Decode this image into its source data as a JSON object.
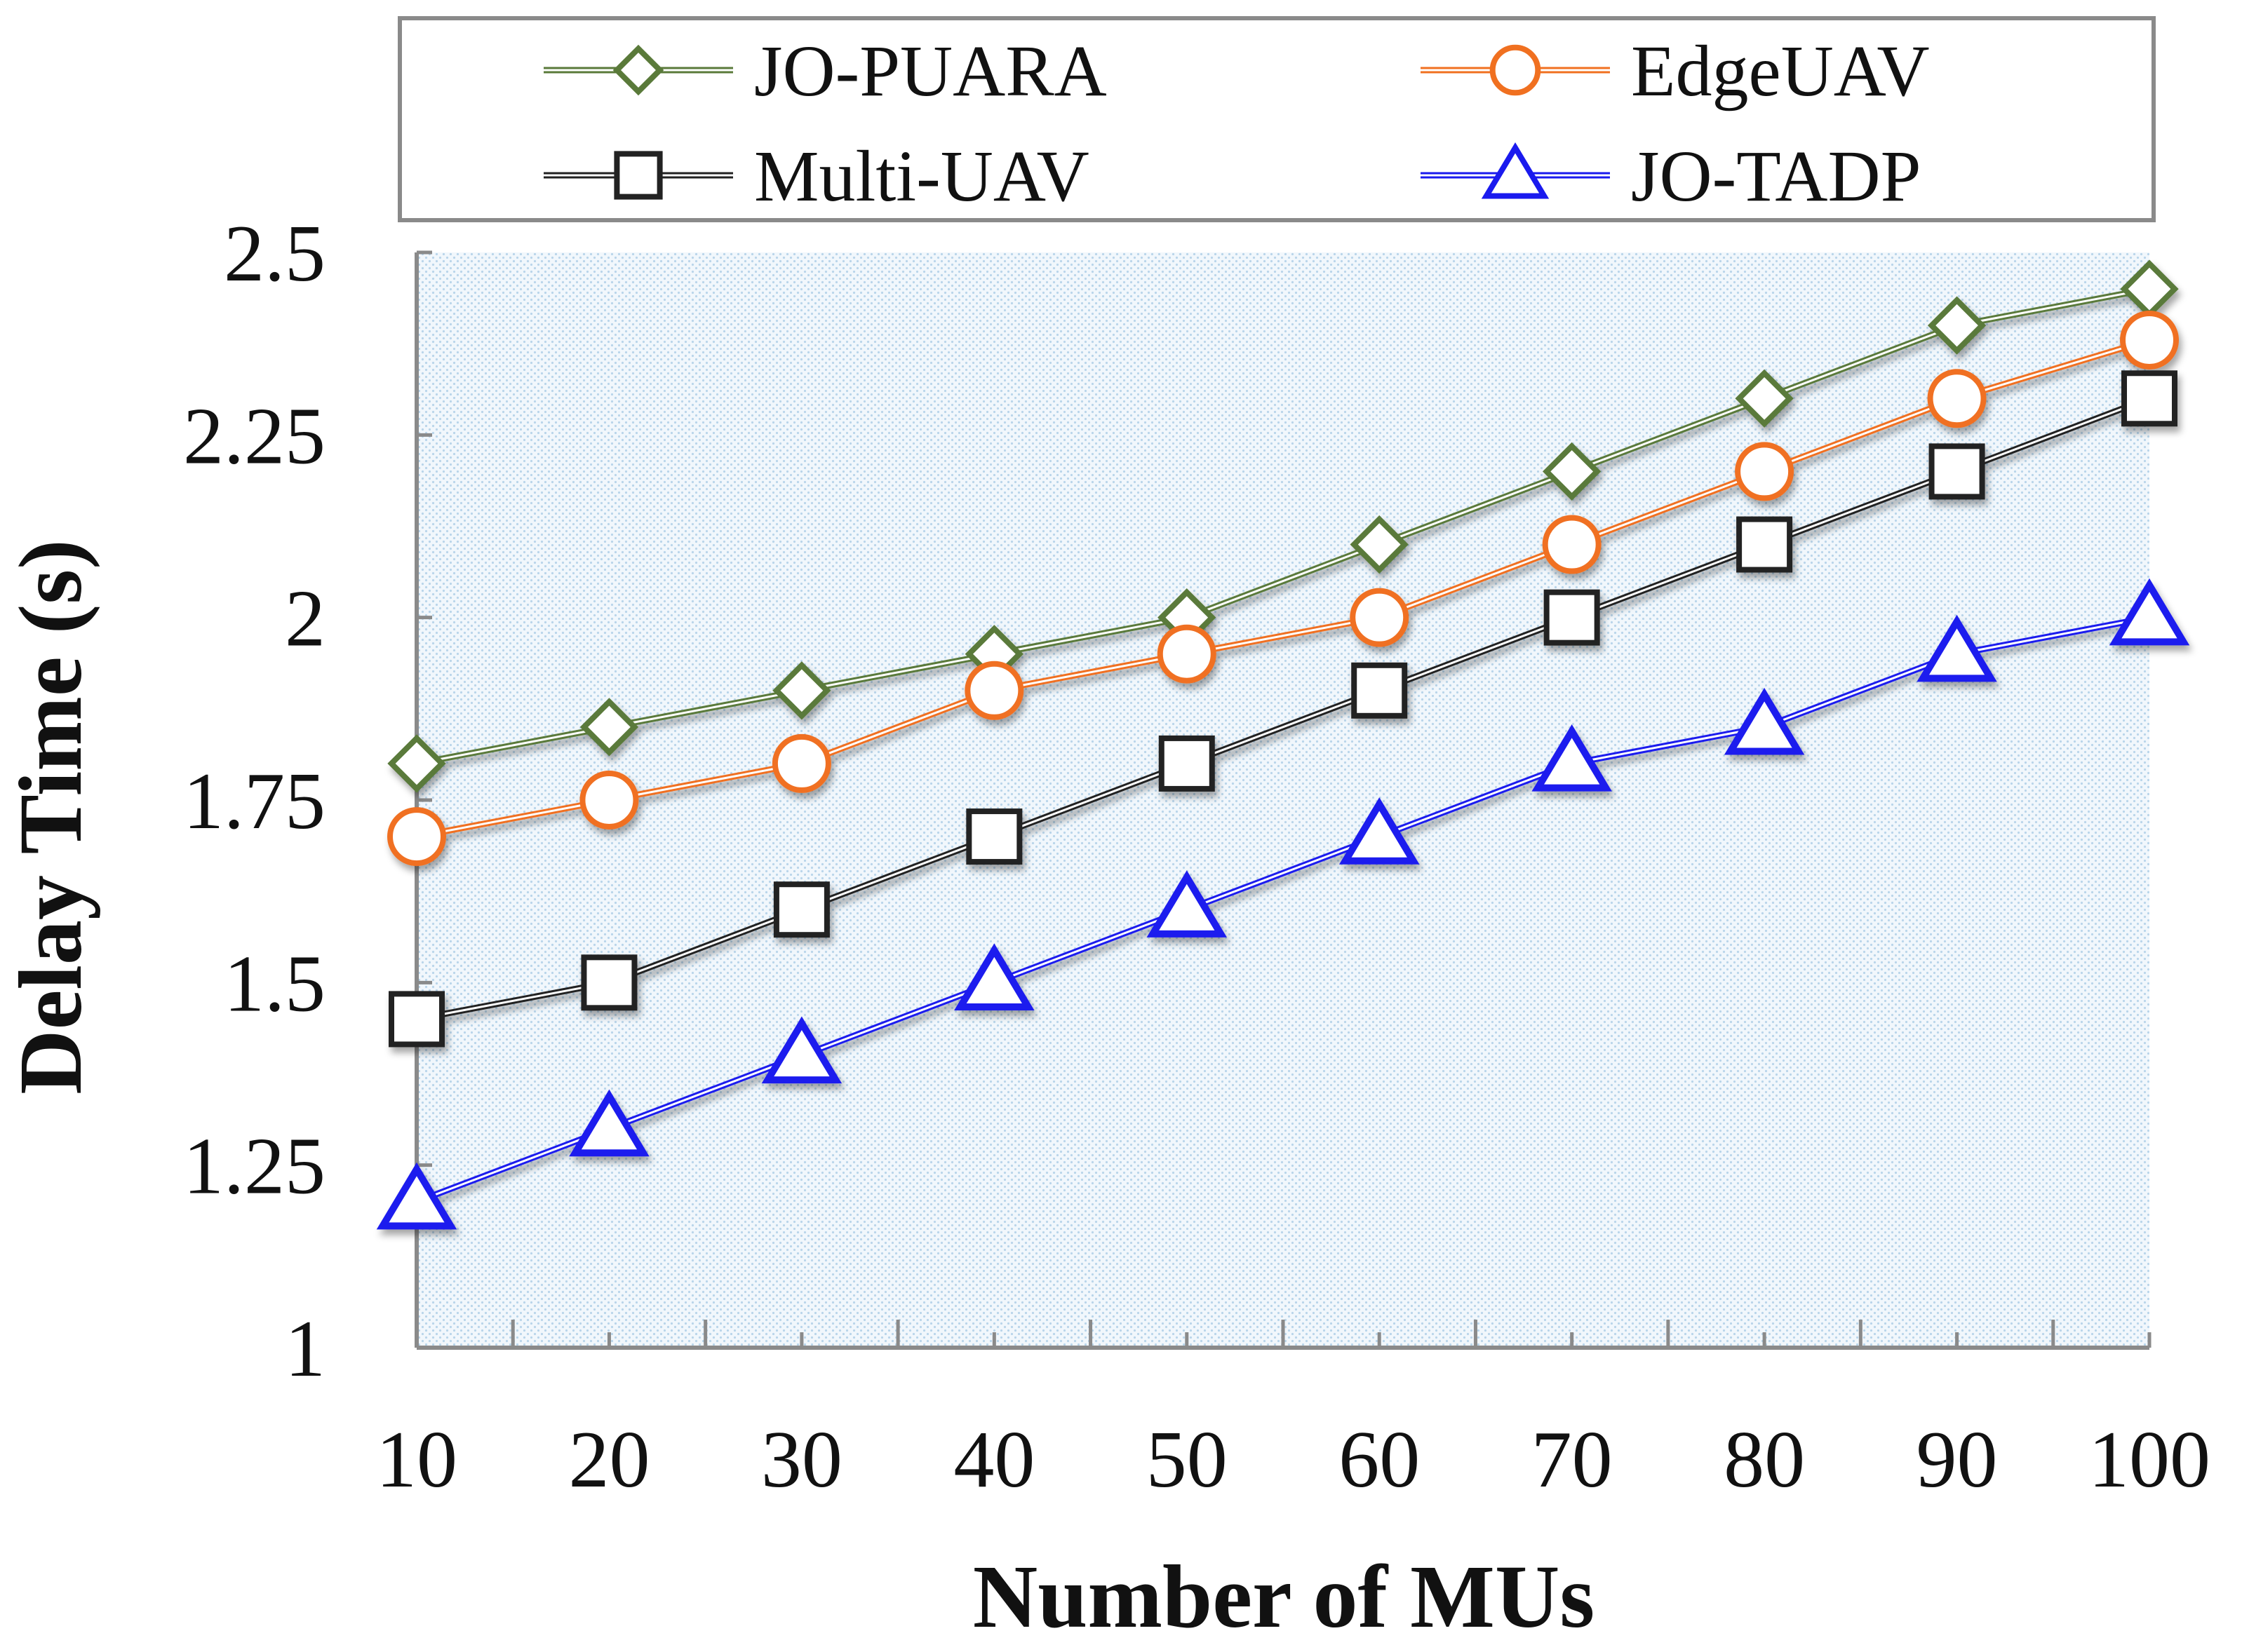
{
  "chart_data": {
    "type": "line",
    "title": "",
    "xlabel": "Number of MUs",
    "ylabel": "Delay Time (s)",
    "x": [
      10,
      20,
      30,
      40,
      50,
      60,
      70,
      80,
      90,
      100
    ],
    "x_tick_labels": [
      "10",
      "20",
      "30",
      "40",
      "50",
      "60",
      "70",
      "80",
      "90",
      "100"
    ],
    "xlim": [
      10,
      100
    ],
    "ylim": [
      1,
      2.5
    ],
    "y_ticks": [
      1,
      1.25,
      1.5,
      1.75,
      2,
      2.25,
      2.5
    ],
    "y_tick_labels": [
      "1",
      "1.25",
      "1.5",
      "1.75",
      "2",
      "2.25",
      "2.5"
    ],
    "grid": false,
    "plot_background": "light blue dotted texture",
    "legend_position": "top",
    "series": [
      {
        "name": "JO-PUARA",
        "marker": "diamond",
        "color": "#5a7a3a",
        "values": [
          1.8,
          1.85,
          1.9,
          1.95,
          2.0,
          2.1,
          2.2,
          2.3,
          2.4,
          2.45
        ]
      },
      {
        "name": "EdgeUAV",
        "marker": "circle",
        "color": "#f07020",
        "values": [
          1.7,
          1.75,
          1.8,
          1.9,
          1.95,
          2.0,
          2.1,
          2.2,
          2.3,
          2.38
        ]
      },
      {
        "name": "Multi-UAV",
        "marker": "square",
        "color": "#222222",
        "values": [
          1.45,
          1.5,
          1.6,
          1.7,
          1.8,
          1.9,
          2.0,
          2.1,
          2.2,
          2.3
        ]
      },
      {
        "name": "JO-TADP",
        "marker": "triangle",
        "color": "#1a1aee",
        "values": [
          1.2,
          1.3,
          1.4,
          1.5,
          1.6,
          1.7,
          1.8,
          1.85,
          1.95,
          2.0
        ]
      }
    ]
  }
}
